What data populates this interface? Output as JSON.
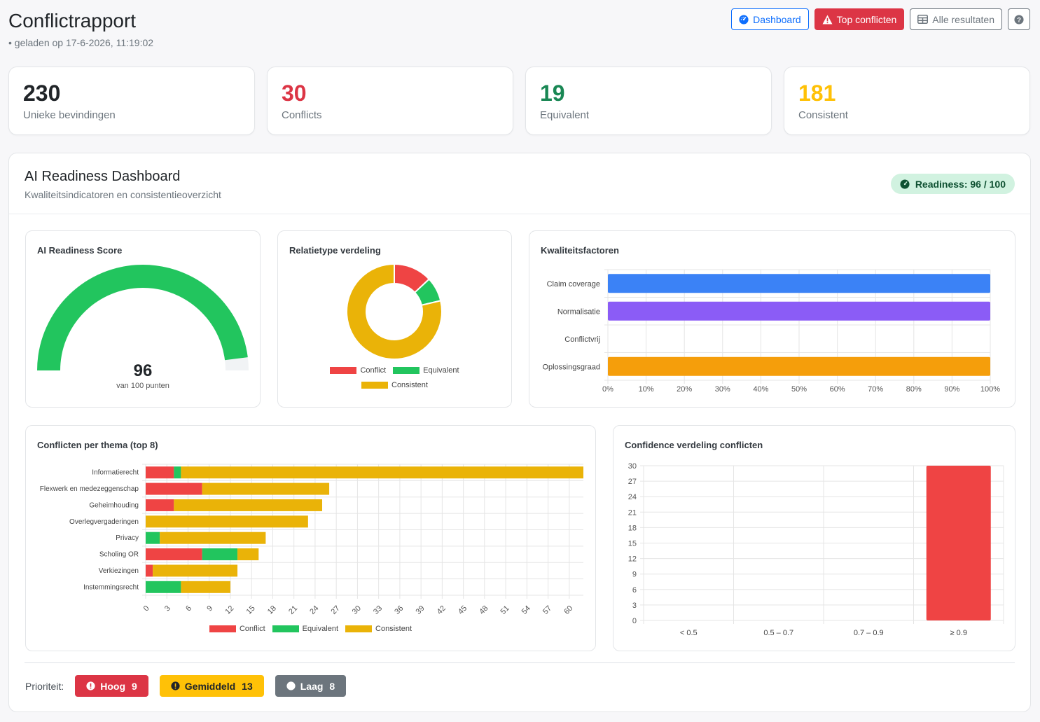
{
  "header": {
    "title": "Conflictrapport",
    "loaded": "• geladen op 17-6-2026, 11:19:02",
    "buttons": {
      "dashboard": "Dashboard",
      "top": "Top conflicten",
      "all": "Alle resultaten"
    }
  },
  "stats": [
    {
      "value": "230",
      "label": "Unieke bevindingen",
      "color": "#212529"
    },
    {
      "value": "30",
      "label": "Conflicts",
      "color": "#dc3545"
    },
    {
      "value": "19",
      "label": "Equivalent",
      "color": "#198754"
    },
    {
      "value": "181",
      "label": "Consistent",
      "color": "#ffc107"
    }
  ],
  "dashboard": {
    "title": "AI Readiness Dashboard",
    "subtitle": "Kwaliteitsindicatoren en consistentieoverzicht",
    "readiness_badge": "Readiness: 96 / 100"
  },
  "gauge": {
    "title": "AI Readiness Score",
    "score": 96,
    "score_text": "96",
    "max_text": "van 100 punten",
    "color": "#22c55e"
  },
  "colors": {
    "conflict": "#ef4444",
    "equivalent": "#22c55e",
    "consistent": "#eab308"
  },
  "donut": {
    "title": "Relatietype verdeling",
    "chart_data": {
      "type": "pie",
      "categories": [
        "Conflict",
        "Equivalent",
        "Consistent"
      ],
      "values": [
        30,
        19,
        181
      ]
    },
    "legend": [
      "Conflict",
      "Equivalent",
      "Consistent"
    ]
  },
  "quality": {
    "title": "Kwaliteitsfactoren",
    "chart_data": {
      "type": "bar",
      "orientation": "horizontal",
      "categories": [
        "Claim coverage",
        "Normalisatie",
        "Conflictvrij",
        "Oplossingsgraad"
      ],
      "values": [
        100,
        100,
        0,
        100
      ],
      "colors": [
        "#3b82f6",
        "#8b5cf6",
        "#ef4444",
        "#f59e0b"
      ],
      "xlim": [
        0,
        100
      ],
      "ticks": [
        "0%",
        "10%",
        "20%",
        "30%",
        "40%",
        "50%",
        "60%",
        "70%",
        "80%",
        "90%",
        "100%"
      ]
    }
  },
  "themes": {
    "title": "Conflicten per thema (top 8)",
    "chart_data": {
      "type": "bar",
      "orientation": "horizontal",
      "stacked": true,
      "categories": [
        "Informatierecht",
        "Flexwerk en medezeggenschap",
        "Geheimhouding",
        "Overlegvergaderingen",
        "Privacy",
        "Scholing OR",
        "Verkiezingen",
        "Instemmingsrecht"
      ],
      "series": [
        {
          "name": "Conflict",
          "values": [
            4,
            8,
            4,
            0,
            0,
            8,
            1,
            0
          ]
        },
        {
          "name": "Equivalent",
          "values": [
            1,
            0,
            0,
            0,
            2,
            5,
            0,
            5
          ]
        },
        {
          "name": "Consistent",
          "values": [
            57,
            18,
            21,
            23,
            15,
            3,
            12,
            7
          ]
        }
      ],
      "xlim": [
        0,
        62
      ],
      "ticks": [
        "0",
        "3",
        "6",
        "9",
        "12",
        "15",
        "18",
        "21",
        "24",
        "27",
        "30",
        "33",
        "36",
        "39",
        "42",
        "45",
        "48",
        "51",
        "54",
        "57",
        "60"
      ]
    },
    "legend": [
      "Conflict",
      "Equivalent",
      "Consistent"
    ]
  },
  "confidence": {
    "title": "Confidence verdeling conflicten",
    "chart_data": {
      "type": "bar",
      "categories": [
        "< 0.5",
        "0.5 – 0.7",
        "0.7 – 0.9",
        "≥ 0.9"
      ],
      "values": [
        0,
        0,
        0,
        30
      ],
      "ylim": [
        0,
        30
      ],
      "ticks": [
        "0",
        "3",
        "6",
        "9",
        "12",
        "15",
        "18",
        "21",
        "24",
        "27",
        "30"
      ]
    }
  },
  "priority": {
    "label": "Prioriteit:",
    "high": {
      "label": "Hoog",
      "count": "9"
    },
    "mid": {
      "label": "Gemiddeld",
      "count": "13"
    },
    "low": {
      "label": "Laag",
      "count": "8"
    }
  }
}
